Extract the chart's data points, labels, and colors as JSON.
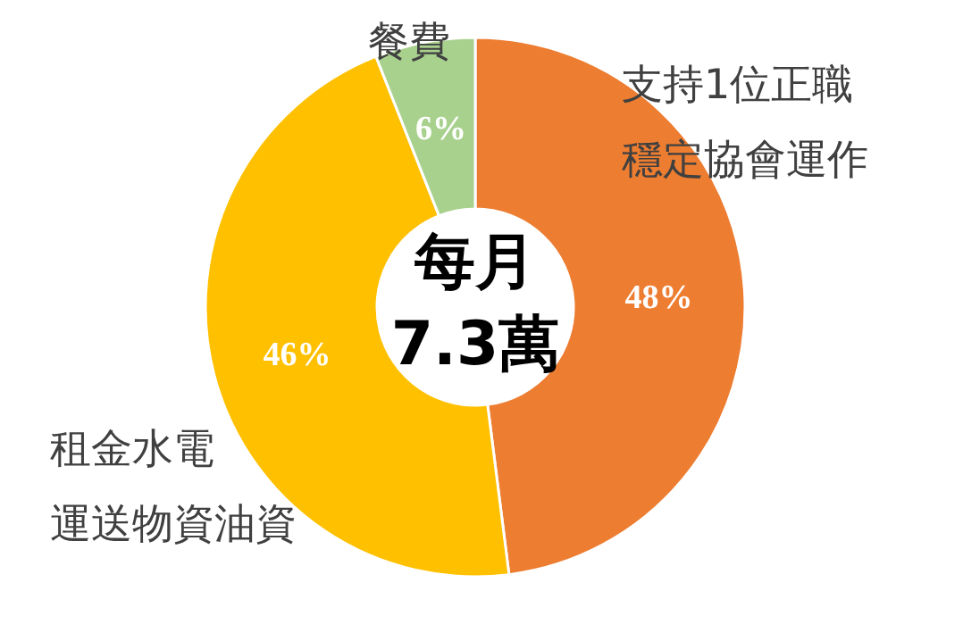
{
  "chart_data": {
    "type": "donut",
    "categories": [
      "支持1位正職穩定協會運作",
      "租金水電運送物資油資",
      "餐費"
    ],
    "values": [
      48,
      46,
      6
    ],
    "colors": [
      "#ed7d31",
      "#ffc000",
      "#a9d18e"
    ],
    "value_labels": [
      "48%",
      "46%",
      "6%"
    ],
    "annotations": [
      "每月\n7.3萬"
    ]
  }
}
